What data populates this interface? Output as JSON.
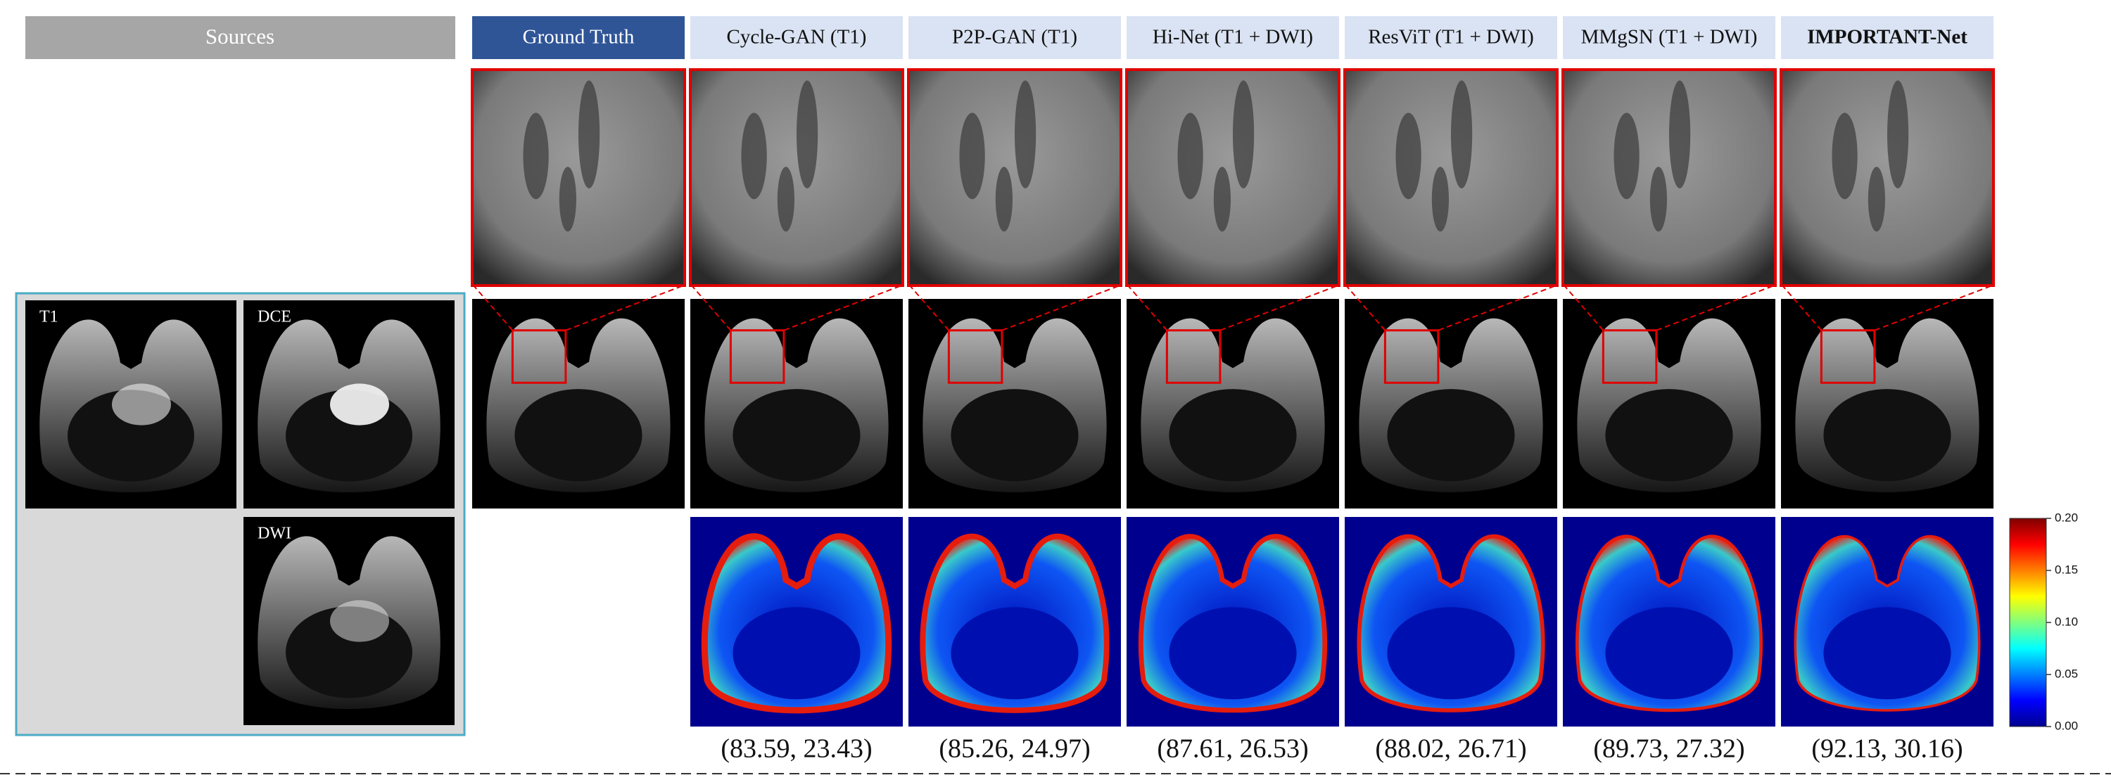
{
  "sources": {
    "title": "Sources",
    "images": [
      "T1",
      "DCE",
      "DWI"
    ]
  },
  "methods": [
    "Ground Truth",
    "Cycle-GAN (T1)",
    "P2P-GAN (T1)",
    "Hi-Net (T1 + DWI)",
    "ResViT (T1 + DWI)",
    "MMgSN (T1 + DWI)",
    "IMPORTANT-Net"
  ],
  "scores": [
    "(83.59, 23.43)",
    "(85.26, 24.97)",
    "(87.61, 26.53)",
    "(88.02, 26.71)",
    "(89.73, 27.32)",
    "(92.13, 30.16)"
  ],
  "colorbar": {
    "ticks": [
      "0.00",
      "0.05",
      "0.10",
      "0.15",
      "0.20"
    ]
  }
}
